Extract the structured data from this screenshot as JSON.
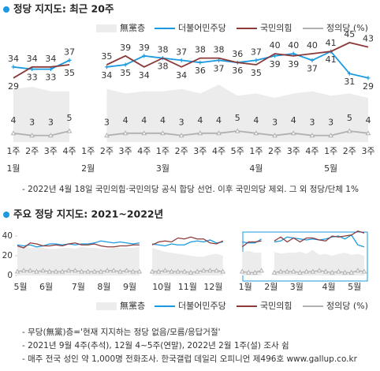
{
  "chart_data": [
    {
      "type": "line",
      "title": "정당 지지도: 최근 20주",
      "categories": [
        "1주",
        "2주",
        "3주",
        "4주",
        "1주",
        "2주",
        "3주",
        "4주",
        "1주",
        "2주",
        "3주",
        "4주",
        "5주",
        "1주",
        "2주",
        "3주",
        "4주",
        "1주",
        "2주",
        "3주"
      ],
      "months": [
        "1월",
        null,
        null,
        null,
        "2월",
        null,
        null,
        null,
        "3월",
        null,
        null,
        null,
        null,
        "4월",
        null,
        null,
        null,
        "5월",
        null,
        null
      ],
      "ylim": [
        0,
        50
      ],
      "data_labels": true,
      "legend": "top",
      "series": [
        {
          "name": "無黨층",
          "color": "#ececec",
          "style": "area",
          "values": [
            24,
            25,
            23,
            23,
            null,
            24,
            22,
            23,
            23,
            24,
            22,
            26,
            21,
            22,
            20,
            22,
            23,
            21,
            22,
            20
          ]
        },
        {
          "name": "더불어민주당",
          "color": "#1a9ae0",
          "style": "line",
          "marker": "plus",
          "values": [
            34,
            33,
            33,
            37,
            null,
            34,
            35,
            39,
            38,
            37,
            36,
            37,
            36,
            37,
            39,
            40,
            37,
            41,
            31,
            29
          ]
        },
        {
          "name": "국민의힘",
          "color": "#8b3a3a",
          "style": "line",
          "values": [
            29,
            34,
            34,
            35,
            null,
            35,
            39,
            34,
            38,
            34,
            38,
            38,
            36,
            35,
            40,
            39,
            40,
            41,
            45,
            43
          ]
        },
        {
          "name": "정의당 (%)",
          "color": "#b0b0b0",
          "style": "line",
          "marker": "triangle",
          "values": [
            4,
            3,
            3,
            5,
            null,
            3,
            4,
            4,
            4,
            3,
            4,
            4,
            5,
            4,
            3,
            4,
            3,
            3,
            5,
            4
          ]
        }
      ],
      "note": "- 2022년 4월 18일 국민의힘·국민의당 공식 합당 선언. 이후 국민의당 제외. 그 외 정당/단체 1%"
    },
    {
      "type": "line",
      "title": "주요 정당 지지도: 2021~2022년",
      "categories": [
        "5월",
        null,
        null,
        null,
        "6월",
        null,
        null,
        null,
        null,
        "7월",
        null,
        null,
        null,
        "8월",
        null,
        null,
        null,
        "9월",
        null,
        null,
        null,
        null,
        "10월",
        null,
        null,
        null,
        "11월",
        null,
        null,
        null,
        "12월",
        null,
        null,
        null,
        null,
        "1월",
        null,
        null,
        null,
        "2월",
        null,
        null,
        null,
        "3월",
        null,
        null,
        null,
        null,
        "4월",
        null,
        null,
        null,
        "5월",
        null,
        null
      ],
      "ylim": [
        0,
        40
      ],
      "yticks": [
        0,
        20,
        40
      ],
      "data_labels": false,
      "legend": "bottom",
      "series": [
        {
          "name": "無黨층",
          "color": "#ececec",
          "style": "area",
          "values": [
            29,
            30,
            28,
            29,
            28,
            27,
            27,
            28,
            28,
            27,
            29,
            28,
            28,
            27,
            27,
            28,
            28,
            28,
            28,
            29,
            null,
            28,
            26,
            24,
            23,
            22,
            21,
            20,
            19,
            19,
            21,
            22,
            20,
            null,
            null,
            24,
            25,
            23,
            23,
            null,
            24,
            22,
            23,
            23,
            24,
            22,
            26,
            21,
            22,
            20,
            22,
            23,
            21,
            22,
            20
          ]
        },
        {
          "name": "더불어민주당",
          "color": "#1a9ae0",
          "style": "line",
          "values": [
            31,
            30,
            31,
            29,
            30,
            32,
            32,
            31,
            32,
            31,
            32,
            32,
            33,
            35,
            34,
            33,
            34,
            33,
            32,
            33,
            null,
            32,
            31,
            30,
            32,
            31,
            31,
            34,
            35,
            34,
            36,
            33,
            34,
            null,
            null,
            34,
            33,
            33,
            37,
            null,
            34,
            35,
            39,
            38,
            37,
            36,
            37,
            36,
            37,
            39,
            40,
            37,
            41,
            31,
            29
          ]
        },
        {
          "name": "국민의힘",
          "color": "#8b3a3a",
          "style": "line",
          "values": [
            30,
            28,
            33,
            32,
            30,
            30,
            31,
            30,
            32,
            33,
            31,
            31,
            32,
            30,
            29,
            29,
            30,
            30,
            31,
            31,
            null,
            31,
            34,
            35,
            34,
            38,
            37,
            39,
            37,
            37,
            33,
            32,
            35,
            null,
            null,
            29,
            34,
            34,
            35,
            null,
            35,
            39,
            34,
            38,
            34,
            38,
            38,
            36,
            35,
            40,
            39,
            40,
            41,
            45,
            43
          ]
        },
        {
          "name": "정의당 (%)",
          "color": "#b0b0b0",
          "style": "line",
          "marker": "triangle",
          "values": [
            4,
            5,
            5,
            4,
            5,
            4,
            4,
            4,
            5,
            5,
            4,
            4,
            4,
            4,
            5,
            5,
            4,
            5,
            4,
            4,
            null,
            4,
            4,
            5,
            4,
            4,
            4,
            3,
            4,
            5,
            5,
            5,
            4,
            null,
            null,
            4,
            3,
            3,
            5,
            null,
            3,
            4,
            4,
            4,
            3,
            4,
            4,
            5,
            4,
            3,
            4,
            3,
            3,
            5,
            4
          ]
        }
      ],
      "notes": [
        "- 무당(無黨)층='현재 지지하는 정당 없음/모름/응답거절'",
        "- 2021년 9월 4주(추석), 12월 4~5주(연말), 2022년 2월 1주(설) 조사 쉼",
        "- 매주 전국 성인 약 1,000명 전화조사. 한국갤럽 데일리 오피니언 제496호 www.gallup.co.kr"
      ]
    }
  ]
}
